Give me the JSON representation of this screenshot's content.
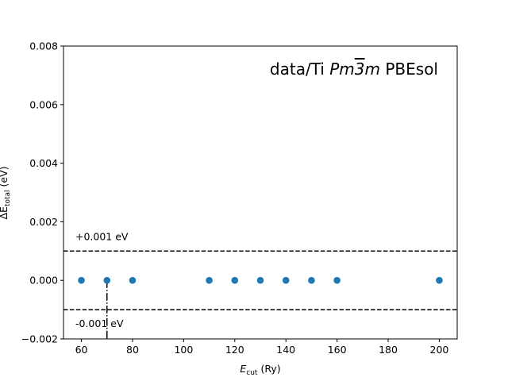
{
  "chart_data": {
    "type": "scatter",
    "title": "data/Ti Pm3m PBEsol",
    "title_parts": {
      "prefix": "data/Ti ",
      "space_group": {
        "P": "P",
        "m1": "m",
        "bar": "3",
        "m2": "m"
      },
      "suffix": " PBEsol"
    },
    "xlabel": {
      "main": "E",
      "sub": "cut",
      "unit": " (Ry)"
    },
    "ylabel": {
      "main": "ΔE",
      "sub": "total",
      "unit": " (eV)"
    },
    "xlim": [
      53,
      207
    ],
    "ylim": [
      -0.002,
      0.008
    ],
    "xticks": [
      60,
      80,
      100,
      120,
      140,
      160,
      180,
      200
    ],
    "yticks": [
      -0.002,
      0.0,
      0.002,
      0.004,
      0.006,
      0.008
    ],
    "ytick_labels": [
      "−0.002",
      "0.000",
      "0.002",
      "0.004",
      "0.006",
      "0.008"
    ],
    "x": [
      60,
      70,
      80,
      110,
      120,
      130,
      140,
      150,
      160,
      200
    ],
    "y": [
      0,
      0,
      0,
      0,
      0,
      0,
      0,
      0,
      0,
      0
    ],
    "point_color": "#1f77b4",
    "hlines": [
      {
        "y": 0.001,
        "label": "+0.001 eV",
        "style": "dashed"
      },
      {
        "y": -0.001,
        "label": "-0.001 eV",
        "style": "dashed"
      }
    ],
    "vline": {
      "x": 70,
      "y_from": -0.002,
      "y_to": 0.0,
      "style": "dashdot"
    },
    "grid": false,
    "legend": "none"
  }
}
